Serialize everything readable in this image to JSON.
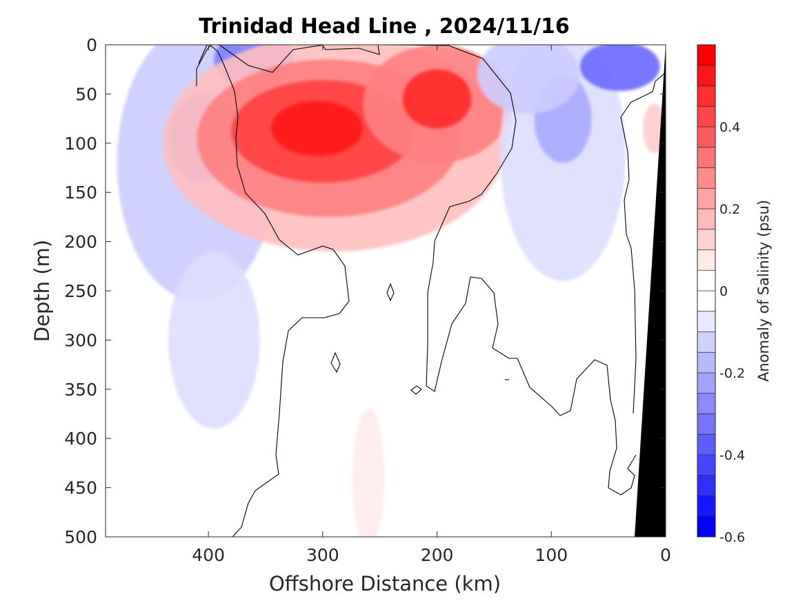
{
  "chart_data": {
    "type": "heatmap",
    "subtype": "filled-contour section",
    "title": "Trinidad Head Line , 2024/11/16",
    "xlabel": "Offshore Distance (km)",
    "ylabel": "Depth (m)",
    "xlim": [
      490,
      0
    ],
    "x_reversed": true,
    "ylim": [
      0,
      500
    ],
    "y_reversed": true,
    "x_ticks": [
      400,
      300,
      200,
      100,
      0
    ],
    "y_ticks": [
      0,
      50,
      100,
      150,
      200,
      250,
      300,
      350,
      400,
      450,
      500
    ],
    "data_x_range": [
      410,
      0
    ],
    "colorbar": {
      "label": "Anomaly of Salinity (psu)",
      "range": [
        -0.6,
        0.6
      ],
      "step": 0.05,
      "tick_values": [
        0.4,
        0.2,
        0,
        -0.2,
        -0.4,
        -0.6
      ],
      "tick_labels": [
        "0.4",
        "0.2",
        "0",
        "-0.2",
        "-0.4",
        "-0.6"
      ],
      "positive_color": "#ff0000",
      "negative_color": "#0000ff",
      "zero_color": "#ffffff"
    },
    "features": [
      {
        "sign": "positive",
        "x": 300,
        "depth": 90,
        "peak_anomaly": 0.55
      },
      {
        "sign": "positive",
        "x": 200,
        "depth": 55,
        "peak_anomaly": 0.5
      },
      {
        "sign": "positive",
        "x": 260,
        "depth": 440,
        "peak_anomaly": 0.05
      },
      {
        "sign": "positive",
        "x": 10,
        "depth": 85,
        "peak_anomaly": 0.12
      },
      {
        "sign": "negative",
        "x": 405,
        "depth": 95,
        "peak_anomaly": -0.3
      },
      {
        "sign": "negative",
        "x": 360,
        "depth": 15,
        "peak_anomaly": -0.3
      },
      {
        "sign": "negative",
        "x": 40,
        "depth": 22,
        "peak_anomaly": -0.35
      },
      {
        "sign": "negative",
        "x": 90,
        "depth": 75,
        "peak_anomaly": -0.2
      }
    ],
    "bathymetry_color": "#000000"
  }
}
